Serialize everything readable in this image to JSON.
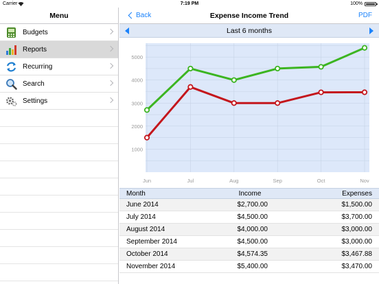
{
  "status_bar": {
    "carrier": "Carrier",
    "time": "7:19 PM",
    "battery": "100%"
  },
  "sidebar": {
    "title": "Menu",
    "items": [
      {
        "label": "Budgets",
        "icon": "budget-icon"
      },
      {
        "label": "Reports",
        "icon": "bar-chart-icon",
        "selected": true
      },
      {
        "label": "Recurring",
        "icon": "refresh-icon"
      },
      {
        "label": "Search",
        "icon": "search-icon"
      },
      {
        "label": "Settings",
        "icon": "gear-icon"
      }
    ]
  },
  "navbar": {
    "back_label": "Back",
    "title": "Expense Income Trend",
    "pdf_label": "PDF"
  },
  "period": {
    "label": "Last 6 months"
  },
  "colors": {
    "income": "#3cb521",
    "expenses": "#c4161c",
    "plot_bg": "#dde8fa",
    "accent": "#1a82fb"
  },
  "chart_data": {
    "type": "line",
    "categories": [
      "Jun",
      "Jul",
      "Aug",
      "Sep",
      "Oct",
      "Nov"
    ],
    "series": [
      {
        "key": "income",
        "values": [
          2700,
          4500,
          4000,
          4500,
          4574.35,
          5400
        ]
      },
      {
        "key": "expenses",
        "values": [
          1500,
          3700,
          3000,
          3000,
          3467.88,
          3470
        ]
      }
    ],
    "yticks": [
      1000,
      2000,
      3000,
      4000,
      5000
    ],
    "ylim": [
      0,
      5600
    ],
    "grid": true
  },
  "table": {
    "headers": {
      "month": "Month",
      "income": "Income",
      "expenses": "Expenses"
    },
    "rows": [
      {
        "month": "June 2014",
        "income": "$2,700.00",
        "expenses": "$1,500.00"
      },
      {
        "month": "July 2014",
        "income": "$4,500.00",
        "expenses": "$3,700.00"
      },
      {
        "month": "August 2014",
        "income": "$4,000.00",
        "expenses": "$3,000.00"
      },
      {
        "month": "September 2014",
        "income": "$4,500.00",
        "expenses": "$3,000.00"
      },
      {
        "month": "October 2014",
        "income": "$4,574.35",
        "expenses": "$3,467.88"
      },
      {
        "month": "November 2014",
        "income": "$5,400.00",
        "expenses": "$3,470.00"
      }
    ]
  }
}
